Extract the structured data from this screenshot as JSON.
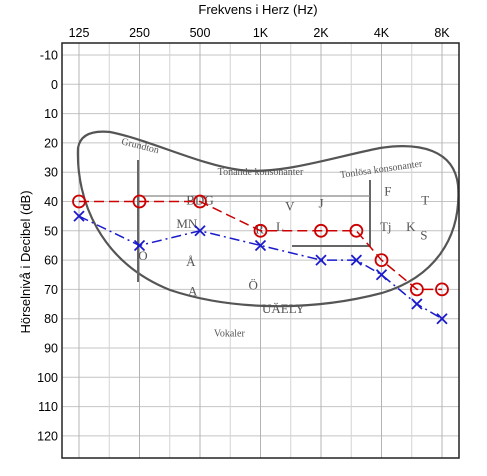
{
  "chart_data": {
    "type": "line",
    "title": "Frekvens i Herz (Hz)",
    "xlabel": "",
    "ylabel": "Hörselnivå i Decibel (dB)",
    "x_ticks": [
      "125",
      "250",
      "500",
      "1K",
      "2K",
      "4K",
      "8K"
    ],
    "y_ticks": [
      "-10",
      "0",
      "10",
      "20",
      "30",
      "40",
      "50",
      "60",
      "70",
      "80",
      "90",
      "100",
      "110",
      "120"
    ],
    "ylim": [
      -15,
      125
    ],
    "y_inverted": true,
    "x_scale": "log2",
    "grid": true,
    "series": [
      {
        "marker": "circle",
        "color": "#cc0000",
        "x": [
          125,
          250,
          500,
          1000,
          2000,
          3000,
          4000,
          6000,
          8000
        ],
        "values": [
          40,
          40,
          40,
          50,
          50,
          50,
          60,
          70,
          70
        ]
      },
      {
        "marker": "x",
        "color": "#1a1acc",
        "x": [
          125,
          250,
          500,
          1000,
          2000,
          3000,
          4000,
          6000,
          8000
        ],
        "values": [
          45,
          55,
          50,
          55,
          60,
          60,
          65,
          75,
          80
        ]
      }
    ],
    "annotations": [
      {
        "text": "Grundton",
        "x": 250,
        "y": 22
      },
      {
        "text": "Tonande konsonanter",
        "x": 1000,
        "y": 31
      },
      {
        "text": "Tonlösa konsonanter",
        "x": 4000,
        "y": 30
      },
      {
        "text": "BDG",
        "x": 500,
        "y": 41
      },
      {
        "text": "V",
        "x": 1400,
        "y": 43
      },
      {
        "text": "J",
        "x": 2000,
        "y": 42
      },
      {
        "text": "F",
        "x": 4300,
        "y": 38
      },
      {
        "text": "T",
        "x": 6600,
        "y": 41
      },
      {
        "text": "MN",
        "x": 430,
        "y": 49
      },
      {
        "text": "R",
        "x": 990,
        "y": 51
      },
      {
        "text": "L",
        "x": 1250,
        "y": 50
      },
      {
        "text": "Tj",
        "x": 4200,
        "y": 50
      },
      {
        "text": "K",
        "x": 5600,
        "y": 50
      },
      {
        "text": "S",
        "x": 6500,
        "y": 53
      },
      {
        "text": "O",
        "x": 260,
        "y": 60
      },
      {
        "text": "Å",
        "x": 450,
        "y": 62
      },
      {
        "text": "A",
        "x": 460,
        "y": 72
      },
      {
        "text": "Ö",
        "x": 920,
        "y": 70
      },
      {
        "text": "UÄELY",
        "x": 1300,
        "y": 78
      },
      {
        "text": "Vokaler",
        "x": 700,
        "y": 86
      }
    ]
  }
}
